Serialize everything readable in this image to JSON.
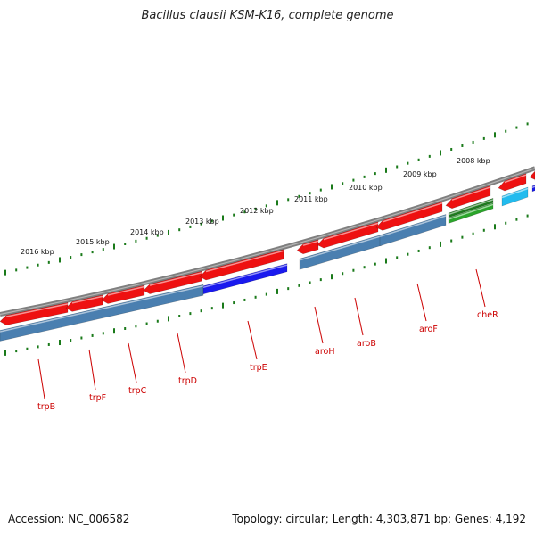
{
  "header": {
    "title": "Bacillus clausii KSM-K16, complete genome"
  },
  "footer": {
    "accession": "Accession: NC_006582",
    "stats": "Topology: circular; Length: 4,303,871 bp; Genes: 4,192"
  },
  "scale_labels": [
    "2016 kbp",
    "2015 kbp",
    "2014 kbp",
    "2013 kbp",
    "2012 kbp",
    "2011 kbp",
    "2010 kbp",
    "2009 kbp",
    "2008 kbp"
  ],
  "gene_labels": [
    "trpB",
    "trpF",
    "trpC",
    "trpD",
    "trpE",
    "aroH",
    "aroB",
    "aroF",
    "cheR"
  ],
  "colors": {
    "backbone": "#7f7f7f",
    "cds_red": "#ee1111",
    "gene_blue": "#4a7fb0",
    "highlight_blue": "#1a1aee",
    "green": "#2aa52a",
    "cyan": "#22bbee",
    "tick_green": "#1a7a1a",
    "label_red": "#cc0000"
  }
}
